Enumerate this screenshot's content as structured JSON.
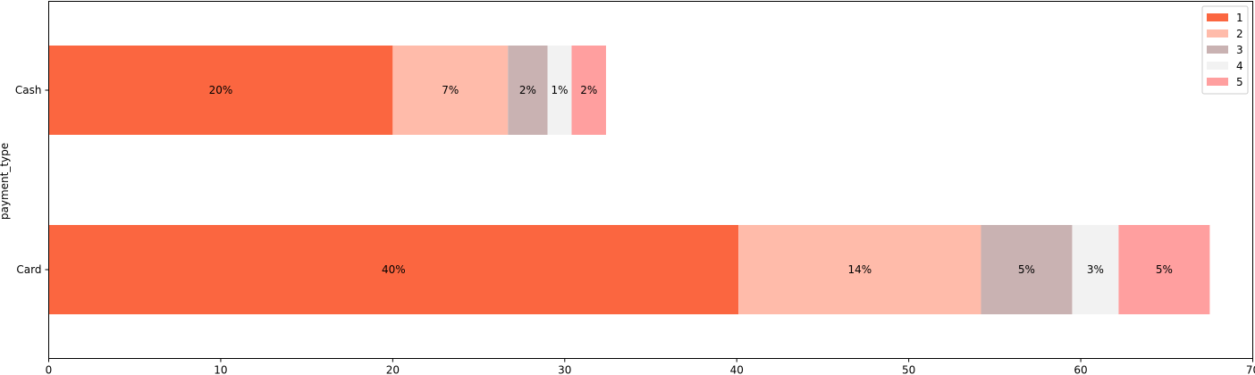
{
  "chart_data": {
    "type": "bar",
    "orientation": "horizontal",
    "stacked": true,
    "title": "",
    "xlabel": "",
    "ylabel": "payment_type",
    "xlim": [
      0,
      70
    ],
    "xticks": [
      "0",
      "10",
      "20",
      "30",
      "40",
      "50",
      "60",
      "70"
    ],
    "categories": [
      "Card",
      "Cash"
    ],
    "legend": {
      "position": "top-right",
      "title": ""
    },
    "grid": false,
    "series": [
      {
        "name": "1",
        "color": "#fb6640",
        "values": [
          40.1,
          20.0
        ],
        "labels": [
          "40%",
          "20%"
        ]
      },
      {
        "name": "2",
        "color": "#ffbbaa",
        "values": [
          14.1,
          6.7
        ],
        "labels": [
          "14%",
          "7%"
        ]
      },
      {
        "name": "3",
        "color": "#c9b2b2",
        "values": [
          5.3,
          2.3
        ],
        "labels": [
          "5%",
          "2%"
        ]
      },
      {
        "name": "4",
        "color": "#f2f2f2",
        "values": [
          2.7,
          1.4
        ],
        "labels": [
          "3%",
          "1%"
        ]
      },
      {
        "name": "5",
        "color": "#ff9f9f",
        "values": [
          5.3,
          2.0
        ],
        "labels": [
          "5%",
          "2%"
        ]
      }
    ]
  }
}
